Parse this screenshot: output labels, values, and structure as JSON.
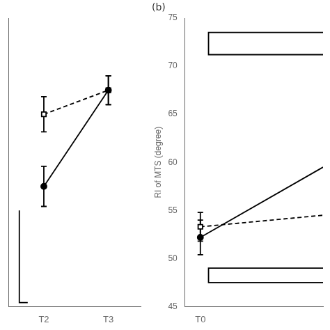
{
  "chart_data": [
    {
      "type": "line",
      "x": [
        0,
        1
      ],
      "xlim": [
        -0.55,
        1.5
      ],
      "xticks": [
        {
          "value": 0,
          "label": "T2"
        },
        {
          "value": 1,
          "label": "T3"
        }
      ],
      "ylim": [
        44,
        80
      ],
      "yticks": [],
      "tick_labels": "x",
      "grid": false,
      "series": [
        {
          "color": "#000000",
          "marker": "circle",
          "line_style": "solid",
          "values": [
            59.0,
            71.0
          ],
          "errors": [
            2.5,
            1.8
          ]
        },
        {
          "color": "#000000",
          "marker": "open_square",
          "line_style": "dashed",
          "values": [
            68.0,
            71.0
          ],
          "errors": [
            2.2,
            1.8
          ]
        }
      ],
      "brackets": [
        {
          "x": [
            -0.38,
            -0.38,
            -0.25
          ],
          "y": [
            56.0,
            44.5,
            44.5
          ]
        }
      ]
    },
    {
      "type": "line",
      "ylabel": "RI of MTS (degree)",
      "xlim": [
        -0.15,
        1.2
      ],
      "xticks": [
        {
          "value": 0,
          "label": "T0"
        }
      ],
      "ylim": [
        45,
        75
      ],
      "yticks": [
        45,
        50,
        55,
        60,
        65,
        70,
        75
      ],
      "grid": false,
      "annotations": [
        {
          "text": "(b)"
        }
      ],
      "series": [
        {
          "color": "#000000",
          "marker": "circle",
          "line_style": "solid",
          "x": [
            0,
            1.2
          ],
          "values": [
            52.2,
            59.5
          ],
          "errors": [
            1.8,
            null
          ]
        },
        {
          "color": "#000000",
          "marker": "open_square",
          "line_style": "dashed",
          "x": [
            0,
            1.2
          ],
          "values": [
            53.3,
            54.5
          ],
          "errors": [
            1.5,
            null
          ]
        }
      ],
      "brackets": [
        {
          "x": [
            1.2,
            0.08,
            0.08,
            1.2
          ],
          "y": [
            73.5,
            73.5,
            71.2,
            71.2
          ]
        },
        {
          "x": [
            1.2,
            0.08,
            0.08,
            1.2
          ],
          "y": [
            49.0,
            49.0,
            47.5,
            47.5
          ]
        }
      ]
    }
  ]
}
